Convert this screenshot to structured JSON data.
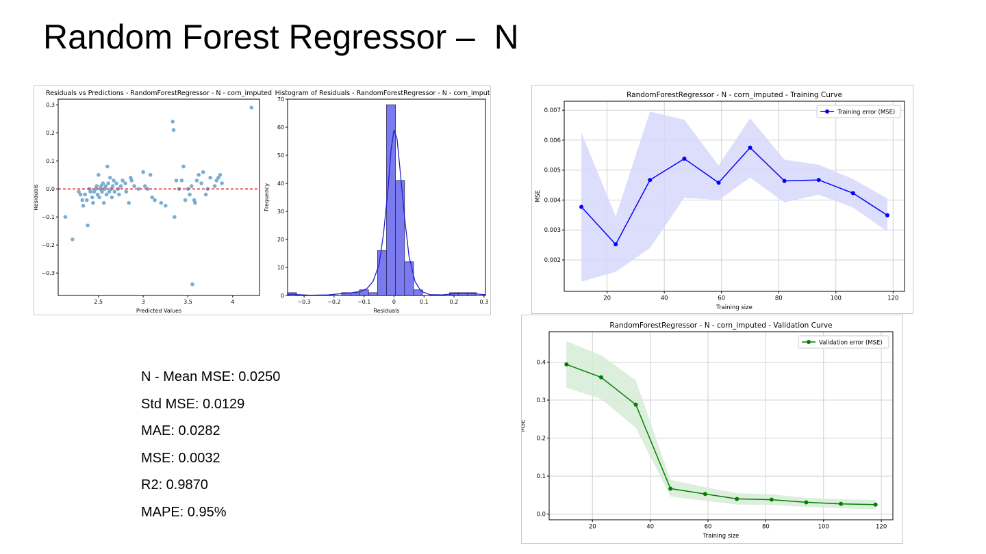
{
  "slide": {
    "title": "Random Forest Regressor –  N"
  },
  "metrics": [
    "N - Mean MSE: 0.0250",
    "Std MSE: 0.0129",
    "MAE: 0.0282",
    "MSE: 0.0032",
    "R2: 0.9870",
    "MAPE: 0.95%"
  ],
  "colors": {
    "scatter_point": "#4f93c4",
    "zero_line": "#e41a1c",
    "histogram_bar": "#7b7bef",
    "kde_line": "#1f1fd0",
    "training": "#0000ff",
    "training_band": "#d7d7fb",
    "validation": "#008000",
    "validation_band": "#d6ebd6"
  },
  "chart_data": [
    {
      "type": "scatter",
      "title": "Residuals vs Predictions - RandomForestRegressor - N - corn_imputed",
      "xlabel": "Predicted Values",
      "ylabel": "Residuals",
      "xlim": [
        2.05,
        4.3
      ],
      "ylim": [
        -0.38,
        0.32
      ],
      "xticks": [
        2.5,
        3.0,
        3.5,
        4.0
      ],
      "yticks": [
        -0.3,
        -0.2,
        -0.1,
        0.0,
        0.1,
        0.2,
        0.3
      ],
      "reference_line": {
        "y": 0.0,
        "style": "dashed"
      },
      "points": [
        [
          2.13,
          -0.1
        ],
        [
          2.21,
          -0.18
        ],
        [
          2.28,
          -0.01
        ],
        [
          2.3,
          -0.02
        ],
        [
          2.32,
          -0.04
        ],
        [
          2.33,
          -0.06
        ],
        [
          2.35,
          -0.02
        ],
        [
          2.37,
          -0.04
        ],
        [
          2.38,
          -0.13
        ],
        [
          2.4,
          0.0
        ],
        [
          2.41,
          -0.01
        ],
        [
          2.43,
          -0.03
        ],
        [
          2.44,
          -0.05
        ],
        [
          2.45,
          -0.01
        ],
        [
          2.47,
          0.0
        ],
        [
          2.48,
          0.01
        ],
        [
          2.49,
          -0.02
        ],
        [
          2.5,
          0.05
        ],
        [
          2.51,
          -0.03
        ],
        [
          2.52,
          0.0
        ],
        [
          2.53,
          0.01
        ],
        [
          2.54,
          -0.01
        ],
        [
          2.55,
          0.02
        ],
        [
          2.56,
          -0.05
        ],
        [
          2.57,
          0.0
        ],
        [
          2.58,
          0.01
        ],
        [
          2.59,
          -0.02
        ],
        [
          2.6,
          0.08
        ],
        [
          2.61,
          0.02
        ],
        [
          2.62,
          -0.01
        ],
        [
          2.63,
          0.04
        ],
        [
          2.64,
          0.0
        ],
        [
          2.65,
          -0.03
        ],
        [
          2.66,
          0.01
        ],
        [
          2.67,
          0.03
        ],
        [
          2.68,
          -0.01
        ],
        [
          2.7,
          0.02
        ],
        [
          2.72,
          0.0
        ],
        [
          2.73,
          -0.02
        ],
        [
          2.75,
          0.01
        ],
        [
          2.77,
          0.03
        ],
        [
          2.8,
          0.02
        ],
        [
          2.81,
          -0.01
        ],
        [
          2.84,
          -0.05
        ],
        [
          2.86,
          0.04
        ],
        [
          2.87,
          0.03
        ],
        [
          2.9,
          0.01
        ],
        [
          2.95,
          0.0
        ],
        [
          3.0,
          0.06
        ],
        [
          3.02,
          0.01
        ],
        [
          3.05,
          0.0
        ],
        [
          3.08,
          0.05
        ],
        [
          3.1,
          -0.03
        ],
        [
          3.13,
          -0.04
        ],
        [
          3.2,
          -0.05
        ],
        [
          3.25,
          -0.06
        ],
        [
          3.33,
          0.24
        ],
        [
          3.34,
          0.21
        ],
        [
          3.35,
          -0.1
        ],
        [
          3.37,
          0.03
        ],
        [
          3.4,
          0.0
        ],
        [
          3.43,
          0.03
        ],
        [
          3.45,
          0.08
        ],
        [
          3.47,
          -0.04
        ],
        [
          3.5,
          0.0
        ],
        [
          3.52,
          -0.02
        ],
        [
          3.54,
          0.01
        ],
        [
          3.55,
          -0.34
        ],
        [
          3.57,
          -0.04
        ],
        [
          3.58,
          -0.05
        ],
        [
          3.6,
          0.03
        ],
        [
          3.62,
          0.05
        ],
        [
          3.65,
          0.02
        ],
        [
          3.67,
          0.06
        ],
        [
          3.7,
          -0.02
        ],
        [
          3.72,
          0.0
        ],
        [
          3.75,
          0.04
        ],
        [
          3.8,
          0.01
        ],
        [
          3.82,
          0.03
        ],
        [
          3.84,
          0.04
        ],
        [
          3.86,
          0.05
        ],
        [
          3.88,
          0.02
        ],
        [
          4.21,
          0.29
        ]
      ]
    },
    {
      "type": "bar",
      "title": "Histogram of Residuals - RandomForestRegressor - N - corn_imputed",
      "xlabel": "Residuals",
      "ylabel": "Frequency",
      "xlim": [
        -0.355,
        0.305
      ],
      "ylim": [
        0,
        70
      ],
      "xticks": [
        -0.3,
        -0.2,
        -0.1,
        0.0,
        0.1,
        0.2,
        0.3
      ],
      "yticks": [
        0,
        10,
        20,
        30,
        40,
        50,
        60,
        70
      ],
      "bins": [
        [
          -0.34,
          1
        ],
        [
          -0.31,
          0
        ],
        [
          -0.28,
          0
        ],
        [
          -0.25,
          0
        ],
        [
          -0.22,
          0
        ],
        [
          -0.19,
          0
        ],
        [
          -0.16,
          1
        ],
        [
          -0.13,
          1
        ],
        [
          -0.1,
          2
        ],
        [
          -0.07,
          1
        ],
        [
          -0.04,
          16
        ],
        [
          -0.01,
          68
        ],
        [
          0.02,
          41
        ],
        [
          0.05,
          12
        ],
        [
          0.08,
          2
        ],
        [
          0.11,
          0
        ],
        [
          0.14,
          0
        ],
        [
          0.17,
          0
        ],
        [
          0.2,
          1
        ],
        [
          0.23,
          1
        ],
        [
          0.26,
          1
        ]
      ],
      "bin_width": 0.03,
      "kde": [
        [
          -0.355,
          0.3
        ],
        [
          -0.34,
          0.5
        ],
        [
          -0.32,
          0.3
        ],
        [
          -0.28,
          0.1
        ],
        [
          -0.22,
          0.2
        ],
        [
          -0.18,
          0.6
        ],
        [
          -0.14,
          1.0
        ],
        [
          -0.11,
          1.5
        ],
        [
          -0.09,
          2.5
        ],
        [
          -0.07,
          5
        ],
        [
          -0.05,
          11
        ],
        [
          -0.035,
          22
        ],
        [
          -0.02,
          38
        ],
        [
          -0.01,
          52
        ],
        [
          0.0,
          59
        ],
        [
          0.01,
          56
        ],
        [
          0.02,
          45
        ],
        [
          0.035,
          28
        ],
        [
          0.05,
          14
        ],
        [
          0.07,
          5
        ],
        [
          0.09,
          1.5
        ],
        [
          0.12,
          0.3
        ],
        [
          0.16,
          0.2
        ],
        [
          0.2,
          0.6
        ],
        [
          0.23,
          0.8
        ],
        [
          0.26,
          0.7
        ],
        [
          0.29,
          0.4
        ],
        [
          0.305,
          0.3
        ]
      ]
    },
    {
      "type": "line",
      "title": "RandomForestRegressor - N - corn_imputed - Training Curve",
      "xlabel": "Training size",
      "ylabel": "MSE",
      "xlim": [
        5,
        124
      ],
      "ylim": [
        0.00095,
        0.0073
      ],
      "xticks": [
        20,
        40,
        60,
        80,
        100,
        120
      ],
      "yticks": [
        0.002,
        0.003,
        0.004,
        0.005,
        0.006,
        0.007
      ],
      "grid": true,
      "legend_position": "top-right",
      "series": [
        {
          "name": "Training error (MSE)",
          "x": [
            11,
            23,
            35,
            47,
            59,
            70,
            82,
            94,
            106,
            118
          ],
          "y": [
            0.00377,
            0.00252,
            0.00467,
            0.00538,
            0.00458,
            0.00575,
            0.00464,
            0.00467,
            0.00423,
            0.00349
          ],
          "lower": [
            0.00128,
            0.0016,
            0.0024,
            0.00408,
            0.004,
            0.00475,
            0.00392,
            0.00418,
            0.00375,
            0.00295
          ],
          "upper": [
            0.00625,
            0.00345,
            0.00695,
            0.00668,
            0.00515,
            0.00673,
            0.00535,
            0.00518,
            0.0047,
            0.00405
          ]
        }
      ]
    },
    {
      "type": "line",
      "title": "RandomForestRegressor - N - corn_imputed - Validation Curve",
      "xlabel": "Training size",
      "ylabel": "MSE",
      "xlim": [
        5,
        124
      ],
      "ylim": [
        -0.015,
        0.48
      ],
      "xticks": [
        20,
        40,
        60,
        80,
        100,
        120
      ],
      "yticks": [
        0.0,
        0.1,
        0.2,
        0.3,
        0.4
      ],
      "grid": true,
      "legend_position": "top-right",
      "series": [
        {
          "name": "Validation error (MSE)",
          "x": [
            11,
            23,
            35,
            47,
            59,
            70,
            82,
            94,
            106,
            118
          ],
          "y": [
            0.394,
            0.36,
            0.288,
            0.067,
            0.053,
            0.04,
            0.038,
            0.031,
            0.027,
            0.025
          ],
          "lower": [
            0.333,
            0.303,
            0.227,
            0.046,
            0.035,
            0.025,
            0.024,
            0.019,
            0.015,
            0.013
          ],
          "upper": [
            0.455,
            0.418,
            0.352,
            0.09,
            0.071,
            0.055,
            0.052,
            0.043,
            0.039,
            0.037
          ]
        }
      ]
    }
  ]
}
